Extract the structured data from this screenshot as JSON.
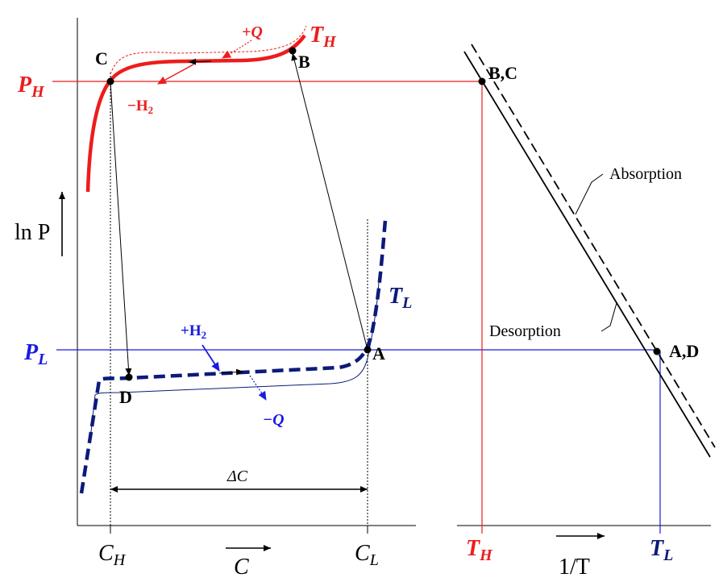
{
  "labels": {
    "point_c": "C",
    "point_b": "B",
    "point_bc": "B,C",
    "point_a": "A",
    "point_d": "D",
    "point_ad": "A,D",
    "p_high_main": "P",
    "p_high_sub": "H",
    "p_low_main": "P",
    "p_low_sub": "L",
    "t_high_curve_main": "T",
    "t_high_curve_sub": "H",
    "t_low_curve_main": "T",
    "t_low_curve_sub": "L",
    "plus_q": "+Q",
    "minus_q": "−Q",
    "minus_h2": "−H",
    "plus_h2": "+H",
    "h2_subscript": "2",
    "ln_p": "ln P",
    "delta_c": "ΔC",
    "c_h_main": "C",
    "c_h_sub": "H",
    "c_l_main": "C",
    "c_l_sub": "L",
    "c_axis": "C",
    "t_h_axis_main": "T",
    "t_h_axis_sub": "H",
    "t_l_axis_main": "T",
    "t_l_axis_sub": "L",
    "inv_t_axis": "1/T",
    "absorption": "Absorption",
    "desorption": "Desorption"
  },
  "colors": {
    "high": "#ee1c1c",
    "low": "#1a1ae0",
    "low_dark": "#0c1a7a",
    "black": "#000000"
  }
}
